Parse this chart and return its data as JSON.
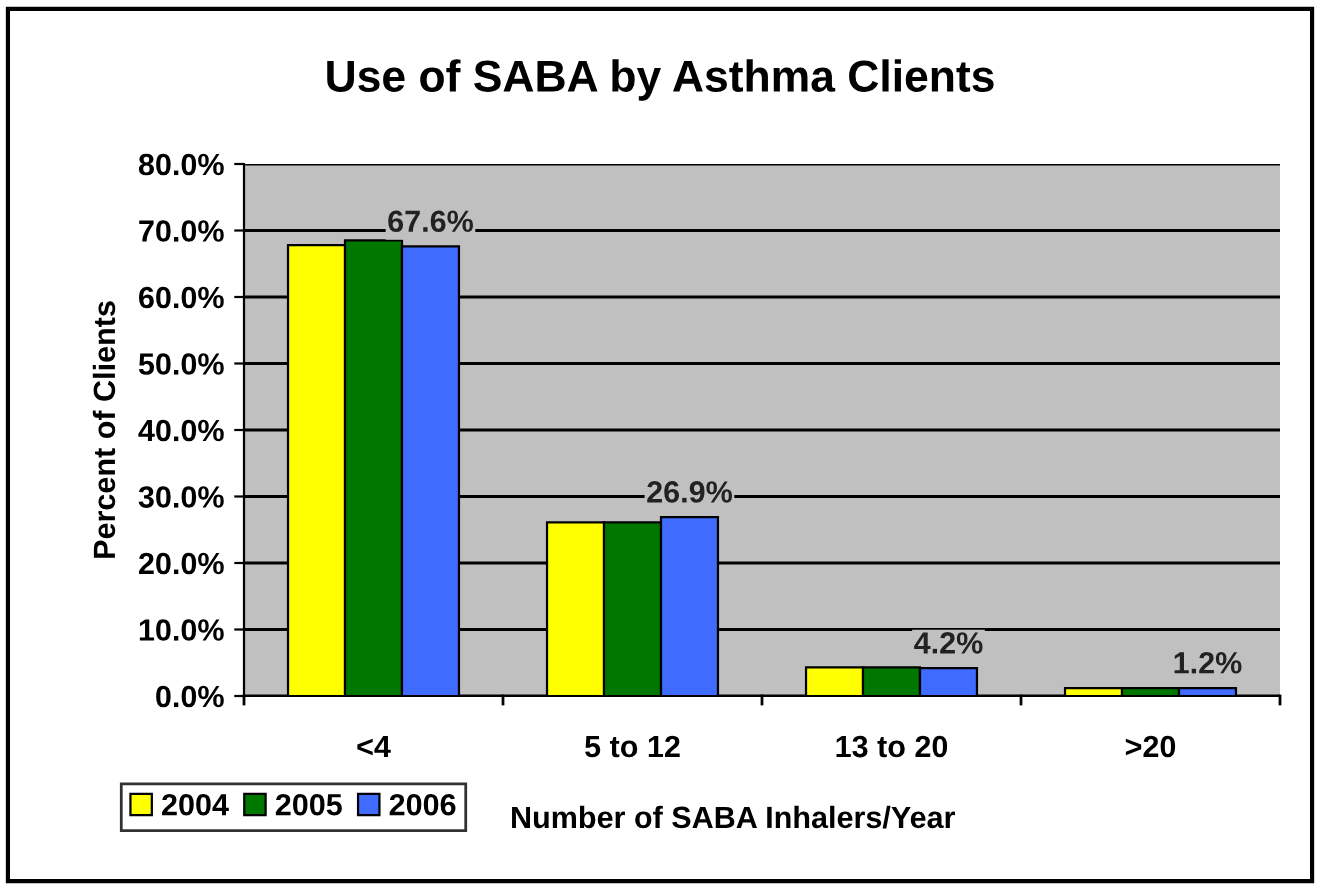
{
  "chart_data": {
    "type": "bar",
    "title": "Use of SABA by Asthma Clients",
    "xlabel": "Number of SABA Inhalers/Year",
    "ylabel": "Percent of Clients",
    "categories": [
      "<4",
      "5 to 12",
      "13 to 20",
      ">20"
    ],
    "series": [
      {
        "name": "2004",
        "color": "#ffff00",
        "values": [
          67.8,
          26.1,
          4.3,
          1.2
        ]
      },
      {
        "name": "2005",
        "color": "#007800",
        "values": [
          68.5,
          26.1,
          4.3,
          1.2
        ]
      },
      {
        "name": "2006",
        "color": "#3f6bff",
        "values": [
          67.6,
          26.9,
          4.2,
          1.2
        ],
        "value_labels": [
          "67.6%",
          "26.9%",
          "4.2%",
          "1.2%"
        ]
      }
    ],
    "ylim": [
      0,
      80
    ],
    "yticks": [
      {
        "value": 0,
        "label": "0.0%"
      },
      {
        "value": 10,
        "label": "10.0%"
      },
      {
        "value": 20,
        "label": "20.0%"
      },
      {
        "value": 30,
        "label": "30.0%"
      },
      {
        "value": 40,
        "label": "40.0%"
      },
      {
        "value": 50,
        "label": "50.0%"
      },
      {
        "value": 60,
        "label": "60.0%"
      },
      {
        "value": 70,
        "label": "70.0%"
      },
      {
        "value": 80,
        "label": "80.0%"
      }
    ],
    "grid": "y",
    "legend": "bottom left"
  }
}
